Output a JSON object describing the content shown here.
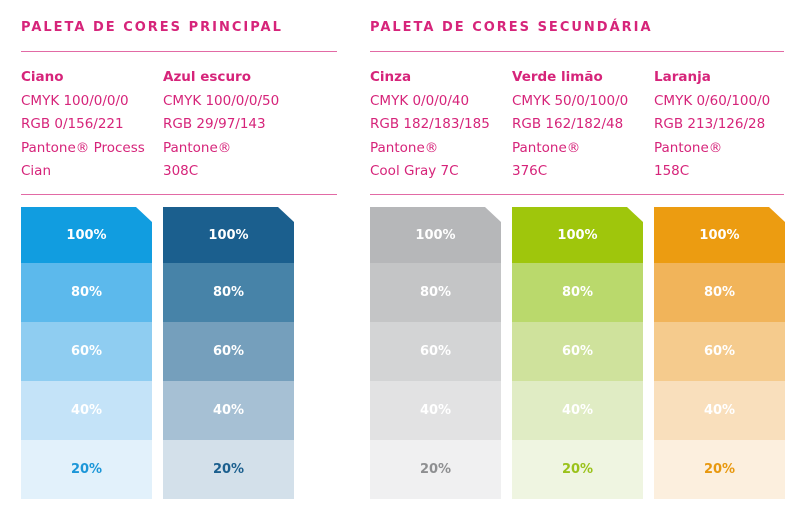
{
  "titles": {
    "primary": "PALETA DE CORES PRINCIPAL",
    "secondary": "PALETA DE CORES SECUNDÁRIA"
  },
  "colors": [
    {
      "name": "Ciano",
      "lines": [
        "CMYK 100/0/0/0",
        "RGB 0/156/221",
        "Pantone® Process",
        "Cian"
      ],
      "shades": [
        "#119de0",
        "#5cb9ec",
        "#8fcdf1",
        "#c4e3f8",
        "#e2f1fb"
      ],
      "label_colors": [
        "#ffffff",
        "#ffffff",
        "#ffffff",
        "#ffffff",
        "#1b96d8"
      ],
      "tints": [
        "100%",
        "80%",
        "60%",
        "40%",
        "20%"
      ]
    },
    {
      "name": "Azul escuro",
      "lines": [
        "CMYK 100/0/0/50",
        "RGB 29/97/143",
        "Pantone®",
        "308C"
      ],
      "shades": [
        "#1b5f8e",
        "#4783a8",
        "#759fbc",
        "#a6c0d4",
        "#d3e0ea"
      ],
      "label_colors": [
        "#ffffff",
        "#ffffff",
        "#ffffff",
        "#ffffff",
        "#1b5f8e"
      ],
      "tints": [
        "100%",
        "80%",
        "60%",
        "40%",
        "20%"
      ]
    },
    {
      "name": "Cinza",
      "lines": [
        "CMYK 0/0/0/40",
        "RGB 182/183/185",
        "Pantone®",
        "Cool Gray 7C"
      ],
      "shades": [
        "#b6b7b9",
        "#c4c5c6",
        "#d3d4d5",
        "#e2e2e3",
        "#f0f0f1"
      ],
      "label_colors": [
        "#ffffff",
        "#ffffff",
        "#ffffff",
        "#ffffff",
        "#8e8f91"
      ],
      "tints": [
        "100%",
        "80%",
        "60%",
        "40%",
        "20%"
      ]
    },
    {
      "name": "Verde limão",
      "lines": [
        "CMYK 50/0/100/0",
        "RGB 162/182/48",
        "Pantone®",
        "376C"
      ],
      "shades": [
        "#9fc60c",
        "#bad96c",
        "#cfe29c",
        "#e0ecc4",
        "#eff5e1"
      ],
      "label_colors": [
        "#ffffff",
        "#ffffff",
        "#ffffff",
        "#ffffff",
        "#9ac21a"
      ],
      "tints": [
        "100%",
        "80%",
        "60%",
        "40%",
        "20%"
      ]
    },
    {
      "name": "Laranja",
      "lines": [
        "CMYK 0/60/100/0",
        "RGB 213/126/28",
        "Pantone®",
        "158C"
      ],
      "shades": [
        "#ec9c11",
        "#f1b45a",
        "#f5cb8d",
        "#f9dfbc",
        "#fcefde"
      ],
      "label_colors": [
        "#ffffff",
        "#ffffff",
        "#ffffff",
        "#ffffff",
        "#e8980e"
      ],
      "tints": [
        "100%",
        "80%",
        "60%",
        "40%",
        "20%"
      ]
    }
  ]
}
